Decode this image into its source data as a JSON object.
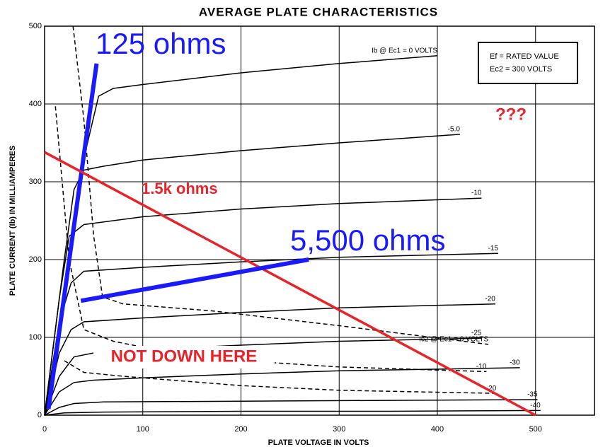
{
  "chart_data": {
    "type": "line",
    "title": "AVERAGE PLATE CHARACTERISTICS",
    "x_label": "PLATE VOLTAGE IN VOLTS",
    "y_label": "PLATE CURRENT (Ib) IN MILLIAMPERES",
    "xlim": [
      0,
      560
    ],
    "ylim": [
      0,
      500
    ],
    "xticks": [
      0,
      100,
      200,
      300,
      400,
      500
    ],
    "yticks": [
      0,
      100,
      200,
      300,
      400,
      500
    ],
    "grid": true,
    "notes": [
      "Ef = RATED VALUE",
      "Ec2 = 300 VOLTS"
    ],
    "series": [
      {
        "name": "Ib @ Ec1 = 0 VOLTS",
        "color": "#000000",
        "style": "solid",
        "x": [
          0,
          20,
          40,
          55,
          70,
          100,
          200,
          300,
          400
        ],
        "values": [
          0,
          150,
          330,
          410,
          420,
          425,
          440,
          452,
          462
        ]
      },
      {
        "name": "-5.0",
        "color": "#000000",
        "style": "solid",
        "x": [
          0,
          20,
          30,
          40,
          60,
          100,
          200,
          300,
          423
        ],
        "values": [
          0,
          200,
          290,
          315,
          320,
          328,
          340,
          350,
          361
        ]
      },
      {
        "name": "-10",
        "color": "#000000",
        "style": "solid",
        "x": [
          0,
          15,
          25,
          40,
          100,
          200,
          300,
          445
        ],
        "values": [
          0,
          150,
          230,
          245,
          255,
          265,
          272,
          279
        ]
      },
      {
        "name": "-15",
        "color": "#000000",
        "style": "solid",
        "x": [
          0,
          15,
          27,
          40,
          100,
          200,
          300,
          462
        ],
        "values": [
          0,
          120,
          170,
          185,
          190,
          197,
          203,
          208
        ]
      },
      {
        "name": "-20",
        "color": "#000000",
        "style": "solid",
        "x": [
          0,
          15,
          27,
          40,
          100,
          200,
          300,
          459
        ],
        "values": [
          0,
          80,
          110,
          120,
          125,
          132,
          138,
          143
        ]
      },
      {
        "name": "-25",
        "color": "#000000",
        "style": "solid",
        "x": [
          0,
          15,
          30,
          50,
          100,
          200,
          300,
          445
        ],
        "values": [
          0,
          50,
          75,
          80,
          84,
          90,
          95,
          99
        ]
      },
      {
        "name": "-30",
        "color": "#000000",
        "style": "solid",
        "x": [
          0,
          15,
          30,
          50,
          100,
          200,
          300,
          484
        ],
        "values": [
          0,
          30,
          42,
          45,
          48,
          53,
          57,
          61
        ]
      },
      {
        "name": "-35",
        "color": "#000000",
        "style": "solid",
        "x": [
          0,
          15,
          30,
          60,
          200,
          350,
          502
        ],
        "values": [
          0,
          10,
          15,
          17,
          18,
          19,
          20
        ]
      },
      {
        "name": "-40",
        "color": "#000000",
        "style": "solid",
        "x": [
          0,
          20,
          60,
          200,
          350,
          505
        ],
        "values": [
          0,
          3,
          4,
          5,
          5,
          6
        ]
      },
      {
        "name": "Ic2 @ Ec1 = 0 VOLTS",
        "color": "#000000",
        "style": "dashed",
        "x": [
          29,
          40,
          50,
          59,
          80,
          171,
          300,
          452
        ],
        "values": [
          500,
          380,
          230,
          152,
          143,
          134,
          115,
          91
        ]
      },
      {
        "name": "-10",
        "color": "#000000",
        "style": "dashed",
        "x": [
          11,
          25,
          40,
          70,
          130,
          200,
          300,
          450
        ],
        "values": [
          397,
          200,
          110,
          95,
          80,
          70,
          62,
          56
        ]
      },
      {
        "name": "-20",
        "color": "#000000",
        "style": "dashed",
        "x": [
          20,
          40,
          80,
          130,
          200,
          300,
          460
        ],
        "values": [
          70,
          55,
          50,
          45,
          38,
          32,
          28
        ]
      },
      {
        "name": "125 ohms",
        "color": "#1a1aff",
        "style": "bold",
        "x": [
          4,
          53
        ],
        "values": [
          8,
          452
        ]
      },
      {
        "name": "1.5k ohms",
        "color": "#e8232a",
        "style": "medium",
        "x": [
          0,
          500
        ],
        "values": [
          338,
          0
        ]
      },
      {
        "name": "5,500 ohms",
        "color": "#1a1aff",
        "style": "bold",
        "x": [
          37,
          269
        ],
        "values": [
          147,
          200
        ]
      }
    ],
    "annotations": [
      {
        "text": "NOT DOWN HERE",
        "color": "#e8232a"
      },
      {
        "text": "???",
        "color": "#e8232a"
      }
    ]
  }
}
